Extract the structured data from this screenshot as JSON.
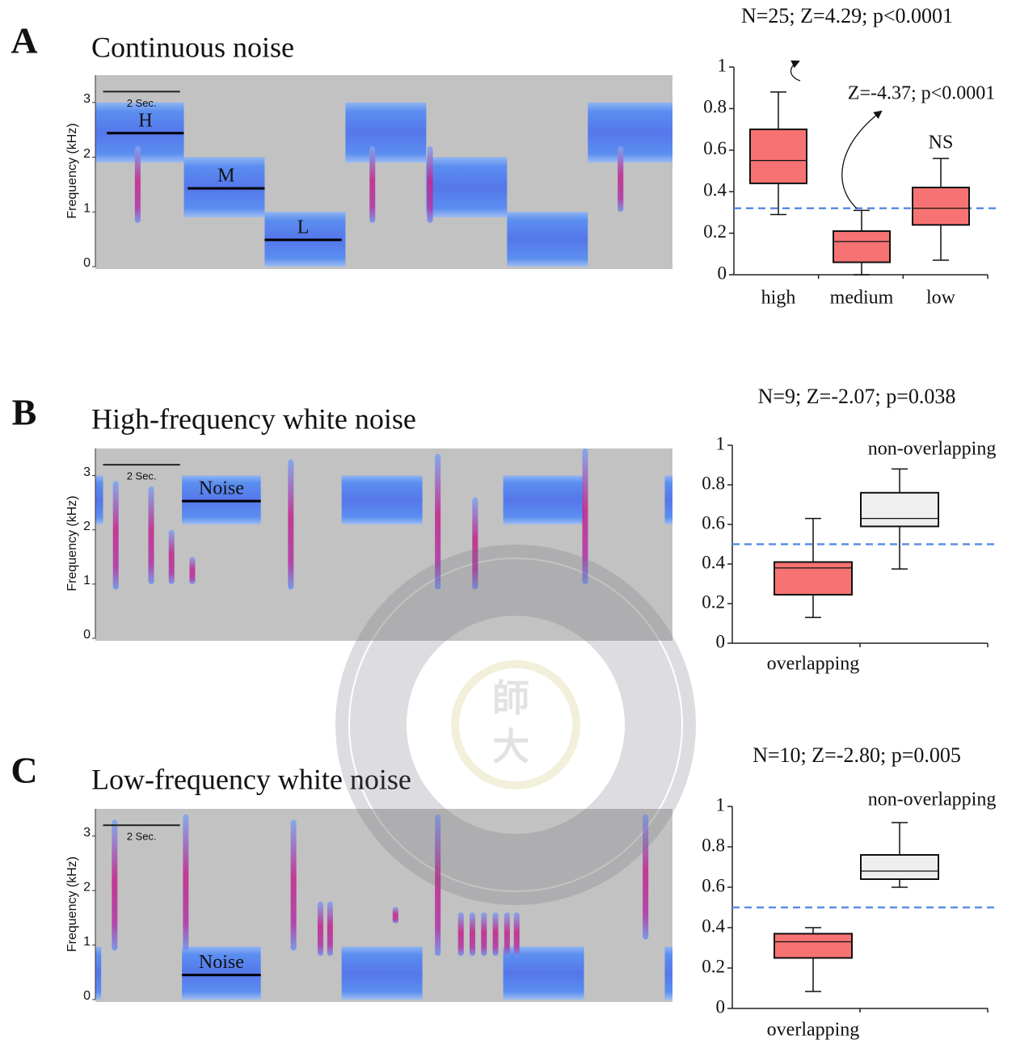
{
  "watermark": {
    "texts": [
      "師",
      "大"
    ]
  },
  "chart_data": [
    {
      "type": "spectrogram",
      "panel": "A",
      "title": "Continuous noise",
      "ylabel": "Frequency (kHz)",
      "xlim": [
        0,
        15
      ],
      "ylim": [
        0,
        3.5
      ],
      "yticks": [
        0,
        1,
        2,
        3
      ],
      "scale_bar": {
        "label": "2 Sec.",
        "length": 2
      },
      "noise": [
        {
          "start": 0,
          "end": 2.3,
          "low": 1.9,
          "high": 3.0
        },
        {
          "start": 2.3,
          "end": 4.4,
          "low": 0.9,
          "high": 2.0
        },
        {
          "start": 4.4,
          "end": 6.5,
          "low": 0,
          "high": 1.0
        },
        {
          "start": 6.5,
          "end": 8.6,
          "low": 1.9,
          "high": 3.0
        },
        {
          "start": 8.6,
          "end": 10.7,
          "low": 0.9,
          "high": 2.0
        },
        {
          "start": 10.7,
          "end": 12.8,
          "low": 0,
          "high": 1.0
        },
        {
          "start": 12.8,
          "end": 15,
          "low": 1.9,
          "high": 3.0
        }
      ],
      "calls": [
        {
          "time": 1.1,
          "low": 0.8,
          "high": 2.2
        },
        {
          "time": 7.2,
          "low": 0.8,
          "high": 2.2
        },
        {
          "time": 8.7,
          "low": 0.8,
          "high": 2.2
        },
        {
          "time": 13.65,
          "low": 1.0,
          "high": 2.2
        }
      ],
      "markers": [
        {
          "label": "H",
          "freq": 2.44,
          "start": 0.3,
          "end": 2.3
        },
        {
          "label": "M",
          "freq": 1.43,
          "start": 2.4,
          "end": 4.4
        },
        {
          "label": "L",
          "freq": 0.49,
          "start": 4.4,
          "end": 6.4
        }
      ]
    },
    {
      "type": "box",
      "title": "N=25; Z=4.29; p<0.0001",
      "categories": [
        "high",
        "medium",
        "low"
      ],
      "ylim": [
        0,
        1
      ],
      "yticks": [
        0,
        0.2,
        0.4,
        0.6,
        0.8,
        1
      ],
      "boxes": [
        {
          "min": 0.29,
          "q1": 0.44,
          "median": 0.55,
          "q3": 0.7,
          "max": 0.88,
          "color": "#f77373"
        },
        {
          "min": 0,
          "q1": 0.06,
          "median": 0.16,
          "q3": 0.21,
          "max": 0.31,
          "color": "#f77373"
        },
        {
          "min": 0.07,
          "q1": 0.24,
          "median": 0.32,
          "q3": 0.42,
          "max": 0.56,
          "color": "#f77373"
        }
      ],
      "reference_line": 0.32,
      "reference_color": "#5b8ee6",
      "annotations": [
        "Z=-4.37; p<0.0001",
        "NS"
      ]
    },
    {
      "type": "spectrogram",
      "panel": "B",
      "title": "High-frequency white noise",
      "ylabel": "Frequency (kHz)",
      "xlim": [
        0,
        15
      ],
      "ylim": [
        0,
        3.5
      ],
      "yticks": [
        0,
        1,
        2,
        3
      ],
      "scale_bar": {
        "label": "2 Sec.",
        "length": 2
      },
      "noise": [
        {
          "start": 0,
          "end": 0.2,
          "low": 2.1,
          "high": 3.0
        },
        {
          "start": 2.25,
          "end": 4.3,
          "low": 2.1,
          "high": 3.0
        },
        {
          "start": 6.4,
          "end": 8.5,
          "low": 2.1,
          "high": 3.0
        },
        {
          "start": 10.6,
          "end": 12.7,
          "low": 2.1,
          "high": 3.0
        },
        {
          "start": 14.8,
          "end": 15,
          "low": 2.1,
          "high": 3.0
        }
      ],
      "calls": [
        {
          "time": 0.53,
          "low": 0.9,
          "high": 2.9
        },
        {
          "time": 1.45,
          "low": 1.0,
          "high": 2.8
        },
        {
          "time": 1.98,
          "low": 1.0,
          "high": 2.0
        },
        {
          "time": 2.52,
          "low": 1.0,
          "high": 1.5
        },
        {
          "time": 5.08,
          "low": 0.9,
          "high": 3.3
        },
        {
          "time": 8.9,
          "low": 0.9,
          "high": 3.4
        },
        {
          "time": 9.87,
          "low": 0.9,
          "high": 2.6
        },
        {
          "time": 12.73,
          "low": 1.0,
          "high": 3.5
        }
      ],
      "markers": [
        {
          "label": "Noise",
          "freq": 2.53,
          "start": 2.25,
          "end": 4.3
        }
      ]
    },
    {
      "type": "box",
      "title": "N=9; Z=-2.07; p=0.038",
      "categories": [
        "overlapping",
        "non-overlapping"
      ],
      "ylim": [
        0,
        1
      ],
      "yticks": [
        0,
        0.2,
        0.4,
        0.6,
        0.8,
        1
      ],
      "boxes": [
        {
          "min": 0.13,
          "q1": 0.245,
          "median": 0.38,
          "q3": 0.41,
          "max": 0.63,
          "color": "#f77373"
        },
        {
          "min": 0.375,
          "q1": 0.59,
          "median": 0.63,
          "q3": 0.76,
          "max": 0.88,
          "color": "#efefef"
        }
      ],
      "reference_line": 0.5,
      "reference_color": "#5b8ee6"
    },
    {
      "type": "spectrogram",
      "panel": "C",
      "title": "Low-frequency white noise",
      "ylabel": "Frequency (kHz)",
      "xlim": [
        0,
        15
      ],
      "ylim": [
        0,
        3.5
      ],
      "yticks": [
        0,
        1,
        2,
        3
      ],
      "scale_bar": {
        "label": "2 Sec.",
        "length": 2
      },
      "noise": [
        {
          "start": 0,
          "end": 0.15,
          "low": 0,
          "high": 0.97
        },
        {
          "start": 2.25,
          "end": 4.3,
          "low": 0,
          "high": 0.97
        },
        {
          "start": 6.4,
          "end": 8.5,
          "low": 0,
          "high": 0.97
        },
        {
          "start": 10.6,
          "end": 12.7,
          "low": 0,
          "high": 0.97
        },
        {
          "start": 14.8,
          "end": 15,
          "low": 0,
          "high": 0.97
        }
      ],
      "calls": [
        {
          "time": 0.5,
          "low": 0.9,
          "high": 3.3
        },
        {
          "time": 2.35,
          "low": 0.9,
          "high": 3.4
        },
        {
          "time": 5.15,
          "low": 0.9,
          "high": 3.3
        },
        {
          "time": 5.85,
          "low": 0.8,
          "high": 1.8
        },
        {
          "time": 6.1,
          "low": 0.8,
          "high": 1.8
        },
        {
          "time": 7.8,
          "low": 1.4,
          "high": 1.7
        },
        {
          "time": 8.9,
          "low": 0.8,
          "high": 3.4
        },
        {
          "time": 9.5,
          "low": 0.8,
          "high": 1.6
        },
        {
          "time": 9.8,
          "low": 0.8,
          "high": 1.6
        },
        {
          "time": 10.1,
          "low": 0.8,
          "high": 1.6
        },
        {
          "time": 10.4,
          "low": 0.8,
          "high": 1.6
        },
        {
          "time": 10.7,
          "low": 0.8,
          "high": 1.6
        },
        {
          "time": 10.95,
          "low": 0.8,
          "high": 1.6
        },
        {
          "time": 14.3,
          "low": 1.1,
          "high": 3.4
        }
      ],
      "markers": [
        {
          "label": "Noise",
          "freq": 0.45,
          "start": 2.25,
          "end": 4.3
        }
      ]
    },
    {
      "type": "box",
      "title": "N=10; Z=-2.80; p=0.005",
      "categories": [
        "overlapping",
        "non-overlapping"
      ],
      "ylim": [
        0,
        1
      ],
      "yticks": [
        0,
        0.2,
        0.4,
        0.6,
        0.8,
        1
      ],
      "boxes": [
        {
          "min": 0.084,
          "q1": 0.25,
          "median": 0.33,
          "q3": 0.37,
          "max": 0.4,
          "color": "#f77373"
        },
        {
          "min": 0.6,
          "q1": 0.64,
          "median": 0.68,
          "q3": 0.76,
          "max": 0.92,
          "color": "#efefef"
        }
      ],
      "reference_line": 0.5,
      "reference_color": "#5b8ee6"
    }
  ]
}
